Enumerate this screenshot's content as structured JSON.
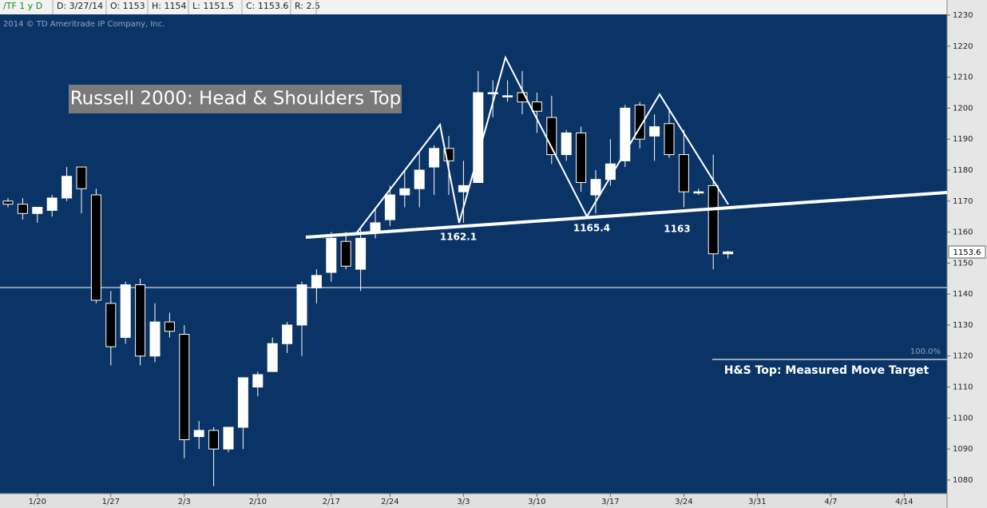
{
  "header": {
    "symbol": "/TF 1 y D",
    "date": "D: 3/27/14",
    "open": "O: 1153",
    "high": "H: 1154",
    "low": "L: 1151.5",
    "close": "C: 1153.6",
    "range": "R: 2.5"
  },
  "chart_data": {
    "type": "candlestick",
    "title": "Russell 2000: Head & Shoulders Top",
    "copyright": "2014 © TD Ameritrade IP Company, Inc.",
    "annotations": [
      "1162.1",
      "1165.4",
      "1163",
      "H&S Top: Measured Move Target",
      "100.0%"
    ],
    "price_label": "1153.6",
    "categories": [
      null,
      null,
      "1/20",
      null,
      null,
      null,
      null,
      "1/27",
      null,
      null,
      null,
      null,
      "2/3",
      null,
      null,
      null,
      null,
      "2/10",
      null,
      null,
      null,
      null,
      "2/17",
      null,
      null,
      null,
      "2/24",
      null,
      null,
      null,
      null,
      "3/3",
      null,
      null,
      null,
      null,
      "3/10",
      null,
      null,
      null,
      null,
      "3/17",
      null,
      null,
      null,
      null,
      "3/24",
      null,
      null,
      null,
      null,
      "3/31",
      null,
      null,
      null,
      null,
      "4/7",
      null,
      null,
      null,
      null,
      "4/14",
      null,
      null
    ],
    "open": [
      1170,
      1169,
      1166,
      1167,
      1171,
      1181,
      1172,
      1137,
      1126,
      1143,
      1120,
      1131,
      1127,
      1094,
      1096,
      1090,
      1097,
      1110,
      1115,
      1124,
      1130,
      1142,
      1147,
      1157,
      1148,
      1160,
      1164,
      1172,
      1174,
      1181,
      1187,
      1173,
      1176,
      1205,
      1204,
      1205,
      1202,
      1197,
      1185,
      1192,
      1172,
      1177,
      1183,
      1201,
      1191,
      1195,
      1185,
      1173,
      1175,
      1153,
      null,
      null,
      null,
      null,
      null,
      null,
      null,
      null,
      null,
      null,
      null,
      null,
      null,
      null
    ],
    "high": [
      1171,
      1171,
      1168,
      1172,
      1181,
      1181,
      1174,
      1141,
      1144,
      1145,
      1137,
      1134,
      1130,
      1099,
      1097,
      1097,
      1113,
      1115,
      1126,
      1131,
      1144,
      1148,
      1160,
      1160,
      1161,
      1168,
      1175,
      1180,
      1186,
      1188,
      1191,
      1183,
      1212,
      1209,
      1209,
      1212,
      1205,
      1204,
      1193,
      1194,
      1180,
      1190,
      1201,
      1202,
      1198,
      1200,
      1193,
      1174,
      1185,
      1154,
      null,
      null,
      null,
      null,
      null,
      null,
      null,
      null,
      null,
      null,
      null,
      null,
      null,
      null
    ],
    "low": [
      1168,
      1164,
      1163,
      1165,
      1170,
      1166,
      1137,
      1117,
      1124,
      1117,
      1118,
      1126,
      1087,
      1090,
      1078,
      1089,
      1090,
      1107,
      1116,
      1121,
      1120,
      1137,
      1144,
      1148,
      1141,
      1158,
      1162,
      1168,
      1168,
      1172,
      1172,
      1163,
      1176,
      1197,
      1202,
      1198,
      1192,
      1182,
      1183,
      1173,
      1166,
      1175,
      1181,
      1187,
      1183,
      1184,
      1168,
      1172,
      1148,
      1151.5,
      null,
      null,
      null,
      null,
      null,
      null,
      null,
      null,
      null,
      null,
      null,
      null,
      null,
      null
    ],
    "close": [
      1169,
      1166,
      1168,
      1171,
      1178,
      1174,
      1138,
      1123,
      1143,
      1120,
      1131,
      1128,
      1093,
      1096,
      1090,
      1097,
      1113,
      1114,
      1124,
      1130,
      1143,
      1146,
      1158,
      1149,
      1158,
      1163,
      1172,
      1174,
      1180,
      1187,
      1183,
      1175,
      1205,
      1205,
      1204,
      1202,
      1199,
      1185,
      1192,
      1176,
      1177,
      1182,
      1200,
      1190,
      1194,
      1185,
      1173,
      1173,
      1153,
      1153.6,
      null,
      null,
      null,
      null,
      null,
      null,
      null,
      null,
      null,
      null,
      null,
      null,
      null,
      null
    ],
    "ylim": [
      1075.6,
      1230
    ],
    "yticks": [
      1080,
      1090,
      1100,
      1110,
      1120,
      1130,
      1140,
      1150,
      1160,
      1170,
      1180,
      1190,
      1200,
      1210,
      1220,
      1230
    ],
    "up_color": "#ffffff",
    "down_color": "#000000",
    "background": "#0b3466"
  }
}
